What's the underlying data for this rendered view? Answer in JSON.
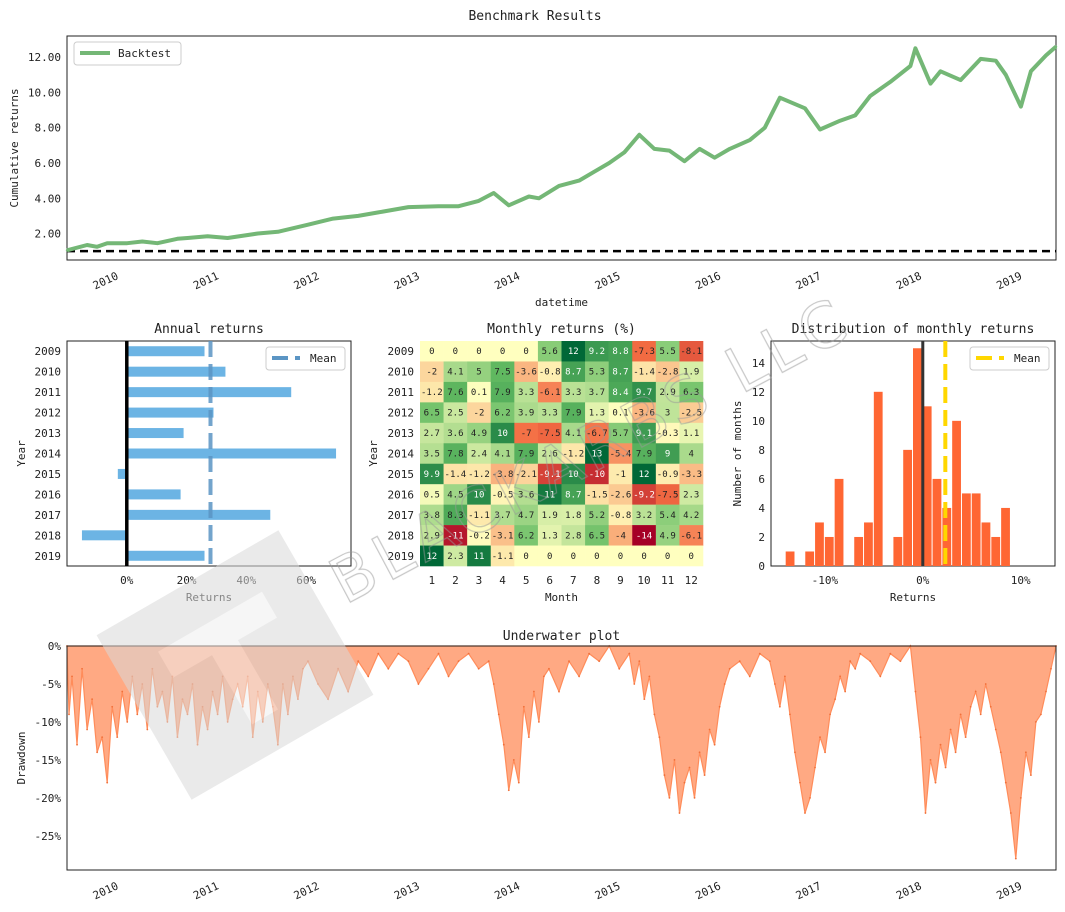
{
  "page": {
    "title": "Benchmark Results"
  },
  "watermark": {
    "text": "BLACKARBS LLC"
  },
  "colors": {
    "cumulative_line": "#74b776",
    "annual_bar": "#6cb4e4",
    "heat_low": "#a50026",
    "heat_mid": "#ffffbf",
    "heat_high": "#006837",
    "histogram": "#ff6633",
    "mean_line_hist": "#ffd700",
    "underwater": "#ff8c5a"
  },
  "chart_data": [
    {
      "id": "cumulative",
      "type": "line",
      "title": "",
      "xlabel": "datetime",
      "ylabel": "Cumulative returns",
      "legend": {
        "entries": [
          "Backtest"
        ],
        "placement": "top-left"
      },
      "x_range": [
        2009.6,
        2019.45
      ],
      "xticks": [
        2010,
        2011,
        2012,
        2013,
        2014,
        2015,
        2016,
        2017,
        2018,
        2019
      ],
      "xtick_labels": [
        "2010",
        "2011",
        "2012",
        "2013",
        "2014",
        "2015",
        "2016",
        "2017",
        "2018",
        "2019"
      ],
      "ylim": [
        0.5,
        13.2
      ],
      "yticks": [
        2,
        4,
        6,
        8,
        10,
        12
      ],
      "ytick_labels": [
        "2.00",
        "4.00",
        "6.00",
        "8.00",
        "10.00",
        "12.00"
      ],
      "baseline": 1.0,
      "series": [
        {
          "name": "Backtest",
          "x": [
            2009.6,
            2009.8,
            2009.9,
            2010.0,
            2010.2,
            2010.35,
            2010.5,
            2010.7,
            2010.8,
            2011.0,
            2011.2,
            2011.5,
            2011.7,
            2012.0,
            2012.25,
            2012.5,
            2012.7,
            2013.0,
            2013.3,
            2013.5,
            2013.7,
            2013.85,
            2014.0,
            2014.2,
            2014.3,
            2014.5,
            2014.7,
            2014.85,
            2015.0,
            2015.15,
            2015.3,
            2015.45,
            2015.6,
            2015.75,
            2015.9,
            2016.05,
            2016.2,
            2016.4,
            2016.55,
            2016.7,
            2016.95,
            2017.1,
            2017.3,
            2017.45,
            2017.6,
            2017.8,
            2018.0,
            2018.05,
            2018.2,
            2018.3,
            2018.5,
            2018.7,
            2018.85,
            2018.95,
            2019.1,
            2019.2,
            2019.35,
            2019.45
          ],
          "y": [
            1.05,
            1.35,
            1.25,
            1.45,
            1.45,
            1.55,
            1.45,
            1.7,
            1.75,
            1.85,
            1.75,
            2.0,
            2.1,
            2.5,
            2.85,
            3.0,
            3.2,
            3.5,
            3.55,
            3.55,
            3.85,
            4.3,
            3.6,
            4.1,
            4.0,
            4.7,
            5.0,
            5.5,
            6.0,
            6.6,
            7.6,
            6.8,
            6.7,
            6.1,
            6.8,
            6.3,
            6.8,
            7.3,
            8.0,
            9.7,
            9.1,
            7.9,
            8.4,
            8.7,
            9.8,
            10.6,
            11.5,
            12.5,
            10.5,
            11.2,
            10.7,
            11.9,
            11.8,
            11.0,
            9.2,
            11.2,
            12.1,
            12.6
          ]
        }
      ]
    },
    {
      "id": "annual",
      "type": "bar",
      "orientation": "horizontal",
      "title": "Annual returns",
      "xlabel": "Returns",
      "ylabel": "Year",
      "legend": {
        "entries": [
          "Mean"
        ],
        "placement": "top-right"
      },
      "categories": [
        "2009",
        "2010",
        "2011",
        "2012",
        "2013",
        "2014",
        "2015",
        "2016",
        "2017",
        "2018",
        "2019"
      ],
      "values": [
        26,
        33,
        55,
        29,
        19,
        70,
        -3,
        18,
        48,
        -15,
        26
      ],
      "mean": 28,
      "xlim": [
        -20,
        75
      ],
      "xticks": [
        0,
        20,
        40,
        60
      ],
      "xtick_labels": [
        "0%",
        "20%",
        "40%",
        "60%"
      ]
    },
    {
      "id": "monthly",
      "type": "heatmap",
      "title": "Monthly returns (%)",
      "xlabel": "Month",
      "ylabel": "Year",
      "columns": [
        "1",
        "2",
        "3",
        "4",
        "5",
        "6",
        "7",
        "8",
        "9",
        "10",
        "11",
        "12"
      ],
      "rows": [
        "2009",
        "2010",
        "2011",
        "2012",
        "2013",
        "2014",
        "2015",
        "2016",
        "2017",
        "2018",
        "2019"
      ],
      "values": [
        [
          0,
          0,
          0,
          0,
          0,
          5.6,
          12,
          9.2,
          8.8,
          -7.3,
          5.5,
          -8.1
        ],
        [
          -2,
          4.1,
          5,
          7.5,
          -3.6,
          -0.8,
          8.7,
          5.3,
          8.7,
          -1.4,
          -2.8,
          1.9
        ],
        [
          -1.2,
          7.6,
          0.1,
          7.9,
          3.3,
          -6.1,
          3.3,
          3.7,
          8.4,
          9.7,
          2.9,
          6.3
        ],
        [
          6.5,
          2.5,
          -2,
          6.2,
          3.9,
          3.3,
          7.9,
          1.3,
          0.1,
          -3.6,
          3,
          -2.5
        ],
        [
          2.7,
          3.6,
          4.9,
          10,
          -7,
          -7.5,
          4.1,
          -6.7,
          5.7,
          9.1,
          -0.3,
          1.1
        ],
        [
          3.5,
          7.8,
          2.4,
          4.1,
          7.9,
          2.6,
          -1.2,
          13,
          -5.4,
          7.9,
          9,
          4
        ],
        [
          9.9,
          -1.4,
          -1.2,
          -3.8,
          -2.1,
          -9.1,
          10,
          -10,
          -1,
          12,
          -0.9,
          -3.3
        ],
        [
          0.5,
          4.5,
          10,
          -0.5,
          3.6,
          11,
          8.7,
          -1.5,
          -2.6,
          -9.2,
          -7.5,
          2.3
        ],
        [
          3.8,
          8.3,
          -1.1,
          3.7,
          4.7,
          1.9,
          1.8,
          5.2,
          -0.8,
          3.2,
          5.4,
          4.2
        ],
        [
          2.9,
          -11,
          -0.2,
          -3.1,
          6.2,
          1.3,
          2.8,
          6.5,
          -4,
          -14,
          4.9,
          -6.1
        ],
        [
          12,
          2.3,
          11,
          -1.1,
          0,
          0,
          0,
          0,
          0,
          0,
          0,
          0
        ]
      ]
    },
    {
      "id": "distribution",
      "type": "bar",
      "title": "Distribution of monthly returns",
      "xlabel": "Returns",
      "ylabel": "Number of months",
      "legend": {
        "entries": [
          "Mean"
        ],
        "placement": "top-right"
      },
      "bin_start": -0.14,
      "bin_width": 0.01,
      "counts": [
        1,
        0,
        1,
        3,
        2,
        6,
        0,
        2,
        3,
        12,
        0,
        2,
        8,
        15,
        11,
        6,
        4,
        10,
        5,
        5,
        3,
        2,
        4
      ],
      "mean": 0.023,
      "zero_line": 0,
      "xlim": [
        -0.155,
        0.135
      ],
      "ylim": [
        0,
        15.5
      ],
      "xticks": [
        -0.1,
        0,
        0.1
      ],
      "xtick_labels": [
        "-10%",
        "0%",
        "10%"
      ],
      "yticks": [
        0,
        2,
        4,
        6,
        8,
        10,
        12,
        14
      ],
      "ytick_labels": [
        "0",
        "2",
        "4",
        "6",
        "8",
        "10",
        "12",
        "14"
      ]
    },
    {
      "id": "underwater",
      "type": "area",
      "title": "Underwater plot",
      "xlabel": "",
      "ylabel": "Drawdown",
      "x_range": [
        2009.6,
        2019.45
      ],
      "xticks": [
        2010,
        2011,
        2012,
        2013,
        2014,
        2015,
        2016,
        2017,
        2018,
        2019
      ],
      "xtick_labels": [
        "2010",
        "2011",
        "2012",
        "2013",
        "2014",
        "2015",
        "2016",
        "2017",
        "2018",
        "2019"
      ],
      "ylim": [
        -29.5,
        0
      ],
      "yticks": [
        0,
        -5,
        -10,
        -15,
        -20,
        -25
      ],
      "ytick_labels": [
        "0%",
        "-5%",
        "-10%",
        "-15%",
        "-20%",
        "-25%"
      ],
      "series": [
        {
          "name": "Drawdown",
          "x": [
            2009.6,
            2009.62,
            2009.65,
            2009.7,
            2009.75,
            2009.8,
            2009.85,
            2009.9,
            2009.95,
            2010.0,
            2010.05,
            2010.1,
            2010.15,
            2010.2,
            2010.25,
            2010.3,
            2010.35,
            2010.4,
            2010.45,
            2010.5,
            2010.55,
            2010.6,
            2010.65,
            2010.7,
            2010.75,
            2010.8,
            2010.85,
            2010.9,
            2010.95,
            2011.0,
            2011.05,
            2011.1,
            2011.15,
            2011.2,
            2011.25,
            2011.3,
            2011.35,
            2011.4,
            2011.45,
            2011.5,
            2011.55,
            2011.6,
            2011.65,
            2011.7,
            2011.75,
            2011.8,
            2011.85,
            2011.9,
            2011.95,
            2012.0,
            2012.1,
            2012.2,
            2012.3,
            2012.4,
            2012.5,
            2012.6,
            2012.7,
            2012.8,
            2012.9,
            2013.0,
            2013.1,
            2013.2,
            2013.3,
            2013.4,
            2013.5,
            2013.6,
            2013.7,
            2013.8,
            2013.85,
            2013.9,
            2013.95,
            2014.0,
            2014.05,
            2014.1,
            2014.15,
            2014.2,
            2014.25,
            2014.3,
            2014.35,
            2014.4,
            2014.5,
            2014.6,
            2014.7,
            2014.8,
            2014.9,
            2015.0,
            2015.1,
            2015.2,
            2015.25,
            2015.3,
            2015.35,
            2015.4,
            2015.45,
            2015.5,
            2015.55,
            2015.6,
            2015.65,
            2015.7,
            2015.75,
            2015.8,
            2015.85,
            2015.9,
            2015.95,
            2016.0,
            2016.05,
            2016.1,
            2016.15,
            2016.2,
            2016.3,
            2016.4,
            2016.5,
            2016.6,
            2016.65,
            2016.7,
            2016.75,
            2016.8,
            2016.85,
            2016.9,
            2016.95,
            2017.0,
            2017.05,
            2017.1,
            2017.15,
            2017.2,
            2017.25,
            2017.3,
            2017.35,
            2017.4,
            2017.45,
            2017.5,
            2017.6,
            2017.7,
            2017.8,
            2017.9,
            2018.0,
            2018.05,
            2018.1,
            2018.15,
            2018.2,
            2018.25,
            2018.3,
            2018.35,
            2018.4,
            2018.45,
            2018.5,
            2018.55,
            2018.6,
            2018.65,
            2018.7,
            2018.75,
            2018.8,
            2018.85,
            2018.9,
            2018.95,
            2019.0,
            2019.05,
            2019.1,
            2019.15,
            2019.2,
            2019.25,
            2019.3,
            2019.35,
            2019.4,
            2019.45
          ],
          "y": [
            0,
            -9,
            -4,
            -13,
            -3,
            -11,
            -7,
            -14,
            -12,
            -18,
            -8,
            -12,
            -6,
            -10,
            -4,
            -9,
            -5,
            -11,
            -3,
            -8,
            -6,
            -10,
            -4,
            -12,
            -7,
            -9,
            -5,
            -13,
            -8,
            -11,
            -6,
            -9,
            -4,
            -10,
            -7,
            -5,
            -8,
            -4,
            -12,
            -6,
            -10,
            -5,
            -8,
            -13,
            -5,
            -9,
            -4,
            -7,
            -3,
            -2,
            -5,
            -7,
            -3,
            -6,
            -2,
            -4,
            -1,
            -3,
            -1,
            -2,
            -5,
            -3,
            -1,
            -4,
            -2,
            -1,
            -3,
            -2,
            -5,
            -9,
            -13,
            -19,
            -15,
            -18,
            -8,
            -12,
            -6,
            -10,
            -4,
            -3,
            -6,
            -2,
            -4,
            -1,
            -2,
            0,
            -3,
            -1,
            -5,
            -2,
            -7,
            -4,
            -9,
            -12,
            -17,
            -20,
            -15,
            -22,
            -18,
            -16,
            -20,
            -14,
            -17,
            -11,
            -13,
            -8,
            -5,
            -3,
            -2,
            -4,
            -1,
            -2,
            -5,
            -8,
            -4,
            -9,
            -14,
            -18,
            -22,
            -20,
            -16,
            -12,
            -14,
            -9,
            -7,
            -4,
            -6,
            -2,
            -3,
            -1,
            -2,
            -4,
            -1,
            -2,
            0,
            -6,
            -12,
            -22,
            -15,
            -18,
            -13,
            -16,
            -11,
            -14,
            -9,
            -12,
            -8,
            -6,
            -9,
            -5,
            -8,
            -11,
            -14,
            -18,
            -22,
            -28,
            -20,
            -14,
            -17,
            -10,
            -9,
            -6,
            -3,
            0
          ]
        }
      ]
    }
  ]
}
